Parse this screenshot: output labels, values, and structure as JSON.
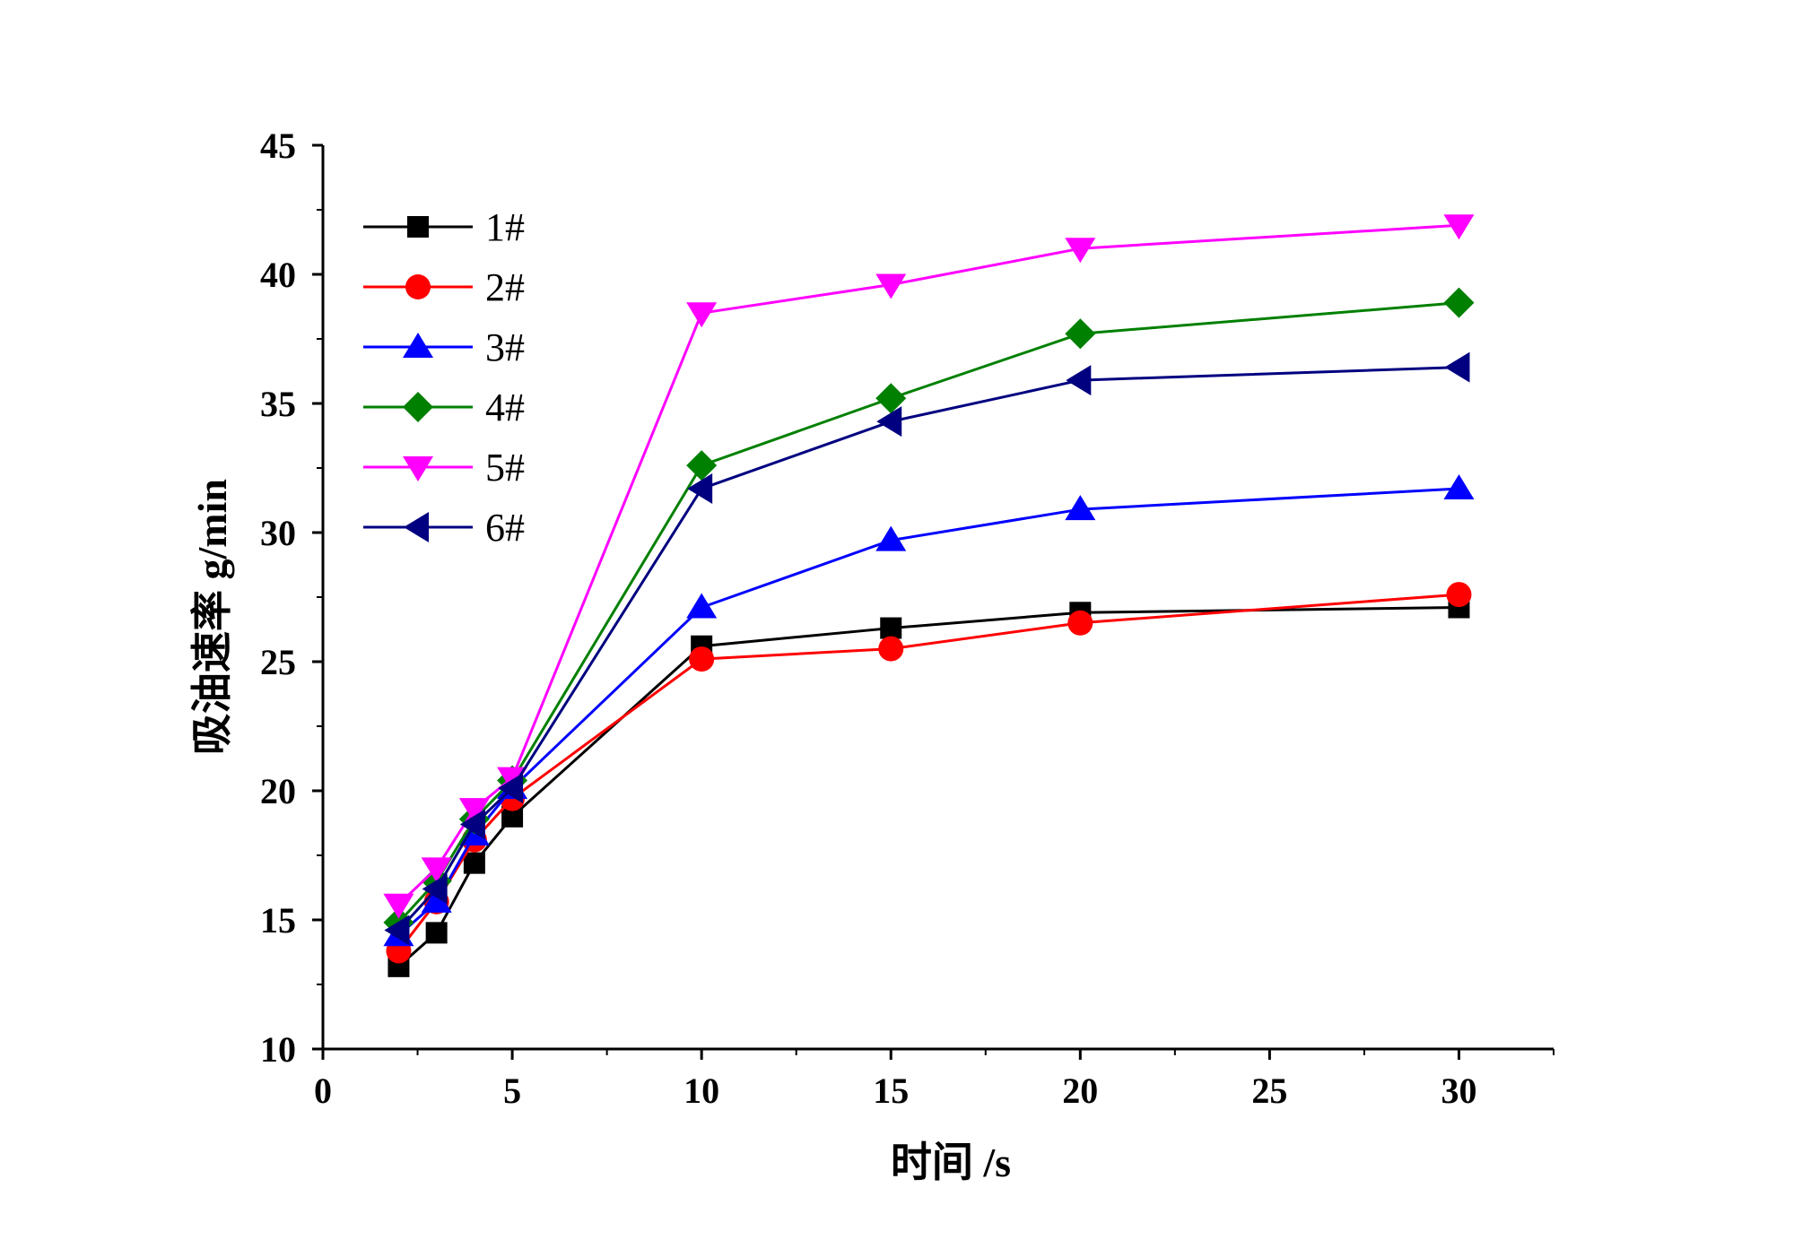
{
  "chart_data": {
    "type": "line",
    "title": "",
    "xlabel": "时间 /s",
    "ylabel": "吸油速率 g/min",
    "xlim": [
      0,
      32.5
    ],
    "ylim": [
      10,
      45
    ],
    "xticks": [
      0,
      5,
      10,
      15,
      20,
      25,
      30
    ],
    "yticks": [
      10,
      15,
      20,
      25,
      30,
      35,
      40,
      45
    ],
    "x_minor_step": 2.5,
    "y_minor_step": 2.5,
    "grid": false,
    "legend_position": "top-left",
    "x": [
      2,
      3,
      4,
      5,
      10,
      15,
      20,
      30
    ],
    "series": [
      {
        "name": "1#",
        "color": "#000000",
        "marker": "square",
        "values": [
          13.2,
          14.5,
          17.2,
          19.0,
          25.6,
          26.3,
          26.9,
          27.1
        ]
      },
      {
        "name": "2#",
        "color": "#ff0000",
        "marker": "circle",
        "values": [
          13.8,
          15.7,
          18.1,
          19.7,
          25.1,
          25.5,
          26.5,
          27.6
        ]
      },
      {
        "name": "3#",
        "color": "#0000ff",
        "marker": "triangle-up",
        "values": [
          14.4,
          15.7,
          18.3,
          20.1,
          27.1,
          29.7,
          30.9,
          31.7
        ]
      },
      {
        "name": "4#",
        "color": "#008000",
        "marker": "diamond",
        "values": [
          14.9,
          16.5,
          18.9,
          20.4,
          32.6,
          35.2,
          37.7,
          38.9
        ]
      },
      {
        "name": "5#",
        "color": "#ff00ff",
        "marker": "triangle-down",
        "values": [
          15.6,
          17.0,
          19.3,
          20.5,
          38.5,
          39.6,
          41.0,
          41.9
        ]
      },
      {
        "name": "6#",
        "color": "#000080",
        "marker": "triangle-left",
        "values": [
          14.6,
          16.2,
          18.7,
          20.1,
          31.7,
          34.3,
          35.9,
          36.4
        ]
      }
    ]
  }
}
